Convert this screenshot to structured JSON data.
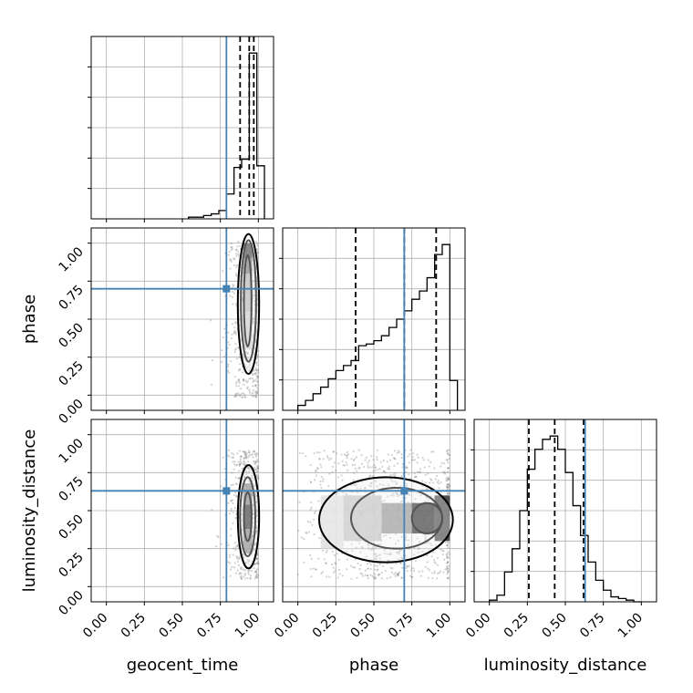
{
  "chart_data": {
    "type": "corner",
    "parameters": [
      "geocent_time",
      "phase",
      "luminosity_distance"
    ],
    "axis_range": [
      -0.1,
      1.1
    ],
    "tick_values": [
      0.0,
      0.25,
      0.5,
      0.75,
      1.0
    ],
    "tick_labels": [
      "0.00",
      "0.25",
      "0.50",
      "0.75",
      "1.00"
    ],
    "grid": true,
    "colors": {
      "truth": "#4682b4",
      "hist": "#000000",
      "grid": "#b0b0b0",
      "scatter": "#7f7f7f"
    },
    "truths": {
      "geocent_time": 0.79,
      "phase": 0.7,
      "luminosity_distance": 0.63
    },
    "quantiles": {
      "geocent_time": [
        0.88,
        0.94,
        0.97
      ],
      "phase": [
        0.38,
        0.7,
        0.91
      ],
      "luminosity_distance": [
        0.26,
        0.43,
        0.62
      ]
    },
    "histograms": {
      "geocent_time": {
        "edges": [
          0.54,
          0.59,
          0.64,
          0.69,
          0.74,
          0.79,
          0.84,
          0.89,
          0.94,
          0.99,
          1.04
        ],
        "counts": [
          0.01,
          0.01,
          0.02,
          0.03,
          0.05,
          0.15,
          0.31,
          0.36,
          1.0,
          0.32
        ],
        "ymax": 1.1
      },
      "phase": {
        "edges": [
          0.0,
          0.05,
          0.1,
          0.15,
          0.2,
          0.25,
          0.3,
          0.35,
          0.4,
          0.45,
          0.5,
          0.55,
          0.6,
          0.65,
          0.7,
          0.75,
          0.8,
          0.85,
          0.9,
          0.95,
          1.0,
          1.05
        ],
        "counts": [
          0.03,
          0.06,
          0.1,
          0.14,
          0.19,
          0.24,
          0.27,
          0.3,
          0.39,
          0.4,
          0.42,
          0.45,
          0.5,
          0.55,
          0.6,
          0.67,
          0.72,
          0.8,
          0.94,
          1.0,
          0.18
        ],
        "ymax": 1.1
      },
      "luminosity_distance": {
        "edges": [
          0.0,
          0.05,
          0.1,
          0.15,
          0.2,
          0.25,
          0.3,
          0.35,
          0.4,
          0.45,
          0.5,
          0.55,
          0.6,
          0.65,
          0.7,
          0.75,
          0.8,
          0.85,
          0.9,
          0.95,
          1.0
        ],
        "counts": [
          0.01,
          0.04,
          0.18,
          0.32,
          0.55,
          0.8,
          0.92,
          0.98,
          1.0,
          0.92,
          0.78,
          0.58,
          0.4,
          0.24,
          0.13,
          0.07,
          0.03,
          0.02,
          0.01,
          0.0
        ],
        "ymax": 1.1
      }
    },
    "pairs": [
      {
        "x": "geocent_time",
        "y": "phase",
        "scatter": {
          "x_center": 0.93,
          "x_spread": 0.07,
          "x_min": 0.5,
          "x_max": 1.0,
          "y_min": -0.02,
          "y_max": 1.02,
          "n": 500
        },
        "density_cells": [
          {
            "x": 0.9,
            "y": 0.9,
            "w": 0.06,
            "h": 0.1,
            "level": 0.8
          },
          {
            "x": 0.9,
            "y": 0.8,
            "w": 0.06,
            "h": 0.1,
            "level": 0.55
          },
          {
            "x": 0.9,
            "y": 0.55,
            "w": 0.06,
            "h": 0.25,
            "level": 0.3
          },
          {
            "x": 0.9,
            "y": 0.3,
            "w": 0.06,
            "h": 0.25,
            "level": 0.2
          }
        ],
        "contours": [
          {
            "cx": 0.93,
            "cy": 0.62,
            "rx": 0.025,
            "ry": 0.3
          },
          {
            "cx": 0.935,
            "cy": 0.62,
            "rx": 0.05,
            "ry": 0.4
          },
          {
            "cx": 0.935,
            "cy": 0.6,
            "rx": 0.07,
            "ry": 0.46
          }
        ]
      },
      {
        "x": "geocent_time",
        "y": "luminosity_distance",
        "scatter": {
          "x_center": 0.93,
          "x_spread": 0.07,
          "x_min": 0.5,
          "x_max": 1.0,
          "y_min": 0.05,
          "y_max": 0.9,
          "n": 500
        },
        "density_cells": [
          {
            "x": 0.9,
            "y": 0.38,
            "w": 0.06,
            "h": 0.16,
            "level": 0.85
          },
          {
            "x": 0.9,
            "y": 0.22,
            "w": 0.06,
            "h": 0.16,
            "level": 0.5
          },
          {
            "x": 0.9,
            "y": 0.54,
            "w": 0.06,
            "h": 0.14,
            "level": 0.5
          }
        ],
        "contours": [
          {
            "cx": 0.93,
            "cy": 0.46,
            "rx": 0.025,
            "ry": 0.16
          },
          {
            "cx": 0.93,
            "cy": 0.46,
            "rx": 0.05,
            "ry": 0.26
          },
          {
            "cx": 0.935,
            "cy": 0.46,
            "rx": 0.07,
            "ry": 0.34
          }
        ]
      },
      {
        "x": "phase",
        "y": "luminosity_distance",
        "scatter": {
          "x_center": 0.6,
          "x_spread": 0.3,
          "x_min": 0.0,
          "x_max": 1.0,
          "y_min": 0.05,
          "y_max": 0.9,
          "n": 900
        },
        "density_cells": [
          {
            "x": 0.75,
            "y": 0.35,
            "w": 0.15,
            "h": 0.2,
            "level": 0.9
          },
          {
            "x": 0.9,
            "y": 0.3,
            "w": 0.1,
            "h": 0.3,
            "level": 0.8
          },
          {
            "x": 0.55,
            "y": 0.35,
            "w": 0.2,
            "h": 0.2,
            "level": 0.45
          },
          {
            "x": 0.3,
            "y": 0.3,
            "w": 0.25,
            "h": 0.3,
            "level": 0.25
          },
          {
            "x": 0.15,
            "y": 0.25,
            "w": 0.15,
            "h": 0.35,
            "level": 0.12
          }
        ],
        "contours": [
          {
            "cx": 0.85,
            "cy": 0.45,
            "rx": 0.1,
            "ry": 0.1
          },
          {
            "cx": 0.65,
            "cy": 0.45,
            "rx": 0.3,
            "ry": 0.2
          },
          {
            "cx": 0.58,
            "cy": 0.44,
            "rx": 0.44,
            "ry": 0.28
          }
        ]
      }
    ]
  }
}
